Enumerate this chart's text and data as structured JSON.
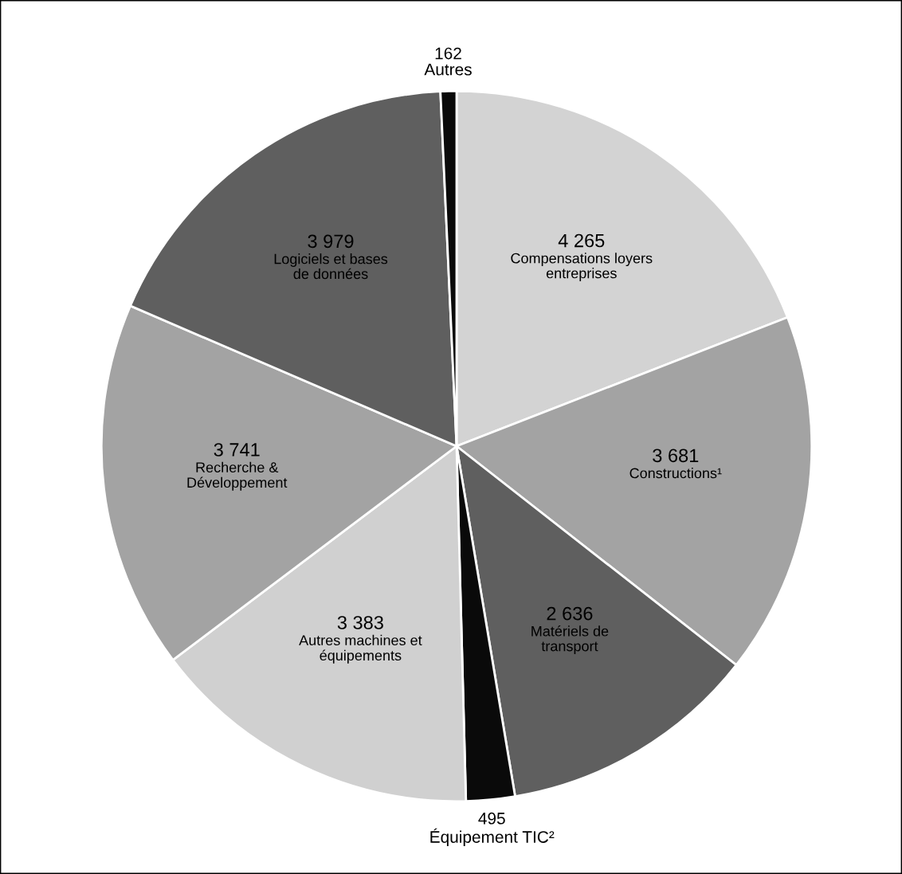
{
  "chart_data": {
    "type": "pie",
    "categories": [
      "Compensations loyers entreprises",
      "Constructions¹",
      "Matériels de transport",
      "Équipement TIC²",
      "Autres machines et équipements",
      "Recherche & Développement",
      "Logiciels et bases de données",
      "Autres"
    ],
    "values": [
      4265,
      3681,
      2636,
      495,
      3383,
      3741,
      3979,
      162
    ],
    "value_labels": [
      "4 265",
      "3 681",
      "2 636",
      "495",
      "3 383",
      "3 741",
      "3 979",
      "162"
    ],
    "colors": [
      "#d3d3d3",
      "#a3a3a3",
      "#5f5f5f",
      "#0a0a0a",
      "#d0d0d0",
      "#a3a3a3",
      "#5f5f5f",
      "#0a0a0a"
    ]
  }
}
